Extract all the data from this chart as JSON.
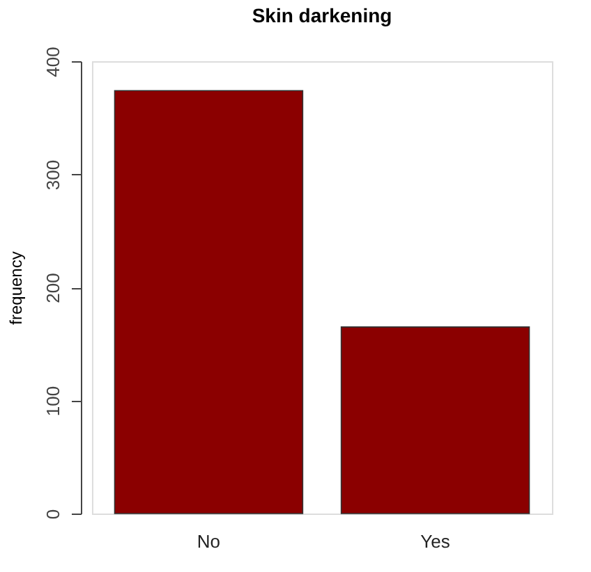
{
  "chart_data": {
    "type": "bar",
    "title": "Skin darkening",
    "ylabel": "frequency",
    "categories": [
      "No",
      "Yes"
    ],
    "values": [
      374,
      165
    ],
    "color": "#8b0000",
    "ylim": [
      0,
      400
    ],
    "yticks": [
      0,
      100,
      200,
      300,
      400
    ],
    "grid": false
  }
}
